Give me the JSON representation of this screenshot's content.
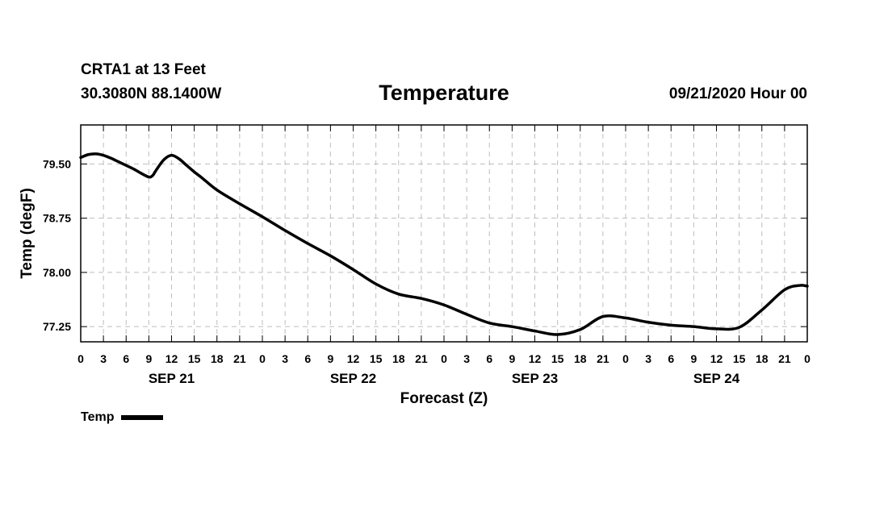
{
  "header": {
    "station": "CRTA1 at 13 Feet",
    "coords": "30.3080N 88.1400W",
    "title": "Temperature",
    "date": "09/21/2020 Hour 00"
  },
  "chart_data": {
    "type": "line",
    "title": "Temperature",
    "xlabel": "Forecast (Z)",
    "ylabel": "Temp (degF)",
    "x_unit": "forecast hour",
    "xlim": [
      0,
      96
    ],
    "ylim": [
      77.04,
      80.04
    ],
    "y_ticks": [
      77.25,
      78.0,
      78.75,
      79.5
    ],
    "y_tick_labels": [
      "77.25",
      "78.00",
      "78.75",
      "79.50"
    ],
    "x_ticks": [
      0,
      3,
      6,
      9,
      12,
      15,
      18,
      21,
      24,
      27,
      30,
      33,
      36,
      39,
      42,
      45,
      48,
      51,
      54,
      57,
      60,
      63,
      66,
      69,
      72,
      75,
      78,
      81,
      84,
      87,
      90,
      93,
      96
    ],
    "x_tick_labels": [
      "0",
      "3",
      "6",
      "9",
      "12",
      "15",
      "18",
      "21",
      "0",
      "3",
      "6",
      "9",
      "12",
      "15",
      "18",
      "21",
      "0",
      "3",
      "6",
      "9",
      "12",
      "15",
      "18",
      "21",
      "0",
      "3",
      "6",
      "9",
      "12",
      "15",
      "18",
      "21",
      "0"
    ],
    "day_labels": [
      {
        "label": "SEP 21",
        "hour": 12
      },
      {
        "label": "SEP 22",
        "hour": 36
      },
      {
        "label": "SEP 23",
        "hour": 60
      },
      {
        "label": "SEP 24",
        "hour": 84
      }
    ],
    "grid": true,
    "legend_position": "bottom-left",
    "series": [
      {
        "name": "Temp",
        "color": "#000000",
        "x": [
          0,
          1,
          2,
          3,
          4,
          5,
          6,
          7,
          8,
          9,
          9.5,
          10,
          11,
          12,
          13,
          14,
          15,
          16,
          18,
          21,
          24,
          27,
          30,
          33,
          36,
          39,
          42,
          45,
          48,
          51,
          54,
          57,
          60,
          63,
          66,
          69,
          72,
          75,
          78,
          81,
          84,
          87,
          90,
          93,
          95,
          96
        ],
        "y": [
          79.59,
          79.63,
          79.64,
          79.62,
          79.58,
          79.53,
          79.48,
          79.43,
          79.37,
          79.32,
          79.34,
          79.42,
          79.56,
          79.62,
          79.57,
          79.48,
          79.39,
          79.31,
          79.14,
          78.95,
          78.77,
          78.58,
          78.4,
          78.23,
          78.04,
          77.84,
          77.7,
          77.64,
          77.55,
          77.42,
          77.3,
          77.25,
          77.19,
          77.14,
          77.21,
          77.39,
          77.37,
          77.31,
          77.27,
          77.25,
          77.22,
          77.24,
          77.48,
          77.76,
          77.82,
          77.81
        ]
      }
    ]
  },
  "legend": {
    "label": "Temp",
    "color": "#000000"
  }
}
